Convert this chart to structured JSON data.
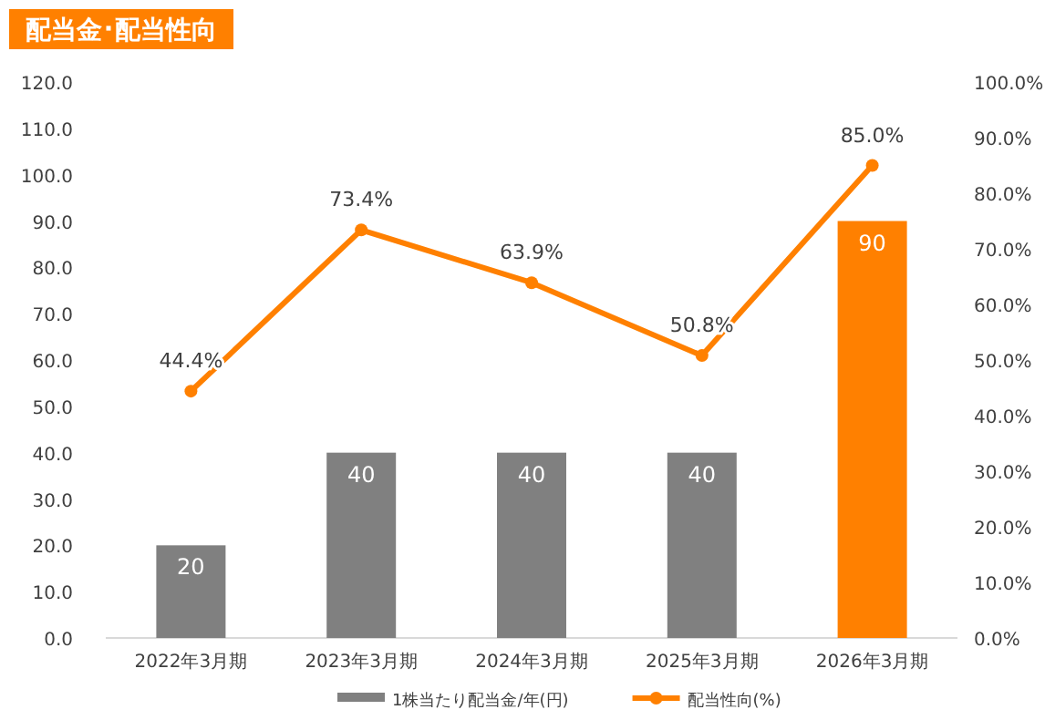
{
  "chart_data": {
    "type": "bar",
    "title": "配当金･配当性向",
    "categories": [
      "2022年3月期",
      "2023年3月期",
      "2024年3月期",
      "2025年3月期",
      "2026年3月期"
    ],
    "series": [
      {
        "name": "1株当たり配当金/年(円)",
        "color": "#808080",
        "colors": [
          "#808080",
          "#808080",
          "#808080",
          "#808080",
          "#ff8000"
        ],
        "values": [
          20,
          40,
          40,
          40,
          90
        ],
        "value_labels": [
          "20",
          "40",
          "40",
          "40",
          "90"
        ]
      },
      {
        "name": "配当性向(%)",
        "type": "line",
        "axis": "y2",
        "color": "#ff8000",
        "marker": "circle",
        "values": [
          44.4,
          73.4,
          63.9,
          50.8,
          85.0
        ],
        "value_labels": [
          "44.4%",
          "73.4%",
          "63.9%",
          "50.8%",
          "85.0%"
        ]
      }
    ],
    "ylim": [
      0,
      120
    ],
    "yticks": [
      {
        "value": 0,
        "label": "0.0"
      },
      {
        "value": 10,
        "label": "10.0"
      },
      {
        "value": 20,
        "label": "20.0"
      },
      {
        "value": 30,
        "label": "30.0"
      },
      {
        "value": 40,
        "label": "40.0"
      },
      {
        "value": 50,
        "label": "50.0"
      },
      {
        "value": 60,
        "label": "60.0"
      },
      {
        "value": 70,
        "label": "70.0"
      },
      {
        "value": 80,
        "label": "80.0"
      },
      {
        "value": 90,
        "label": "90.0"
      },
      {
        "value": 100,
        "label": "100.0"
      },
      {
        "value": 110,
        "label": "110.0"
      },
      {
        "value": 120,
        "label": "120.0"
      }
    ],
    "y2lim": [
      0,
      100
    ],
    "y2ticks": [
      {
        "value": 0,
        "label": "0.0%"
      },
      {
        "value": 10,
        "label": "10.0%"
      },
      {
        "value": 20,
        "label": "20.0%"
      },
      {
        "value": 30,
        "label": "30.0%"
      },
      {
        "value": 40,
        "label": "40.0%"
      },
      {
        "value": 50,
        "label": "50.0%"
      },
      {
        "value": 60,
        "label": "60.0%"
      },
      {
        "value": 70,
        "label": "70.0%"
      },
      {
        "value": 80,
        "label": "80.0%"
      },
      {
        "value": 90,
        "label": "90.0%"
      },
      {
        "value": 100,
        "label": "100.0%"
      }
    ],
    "legend": "bottom"
  }
}
